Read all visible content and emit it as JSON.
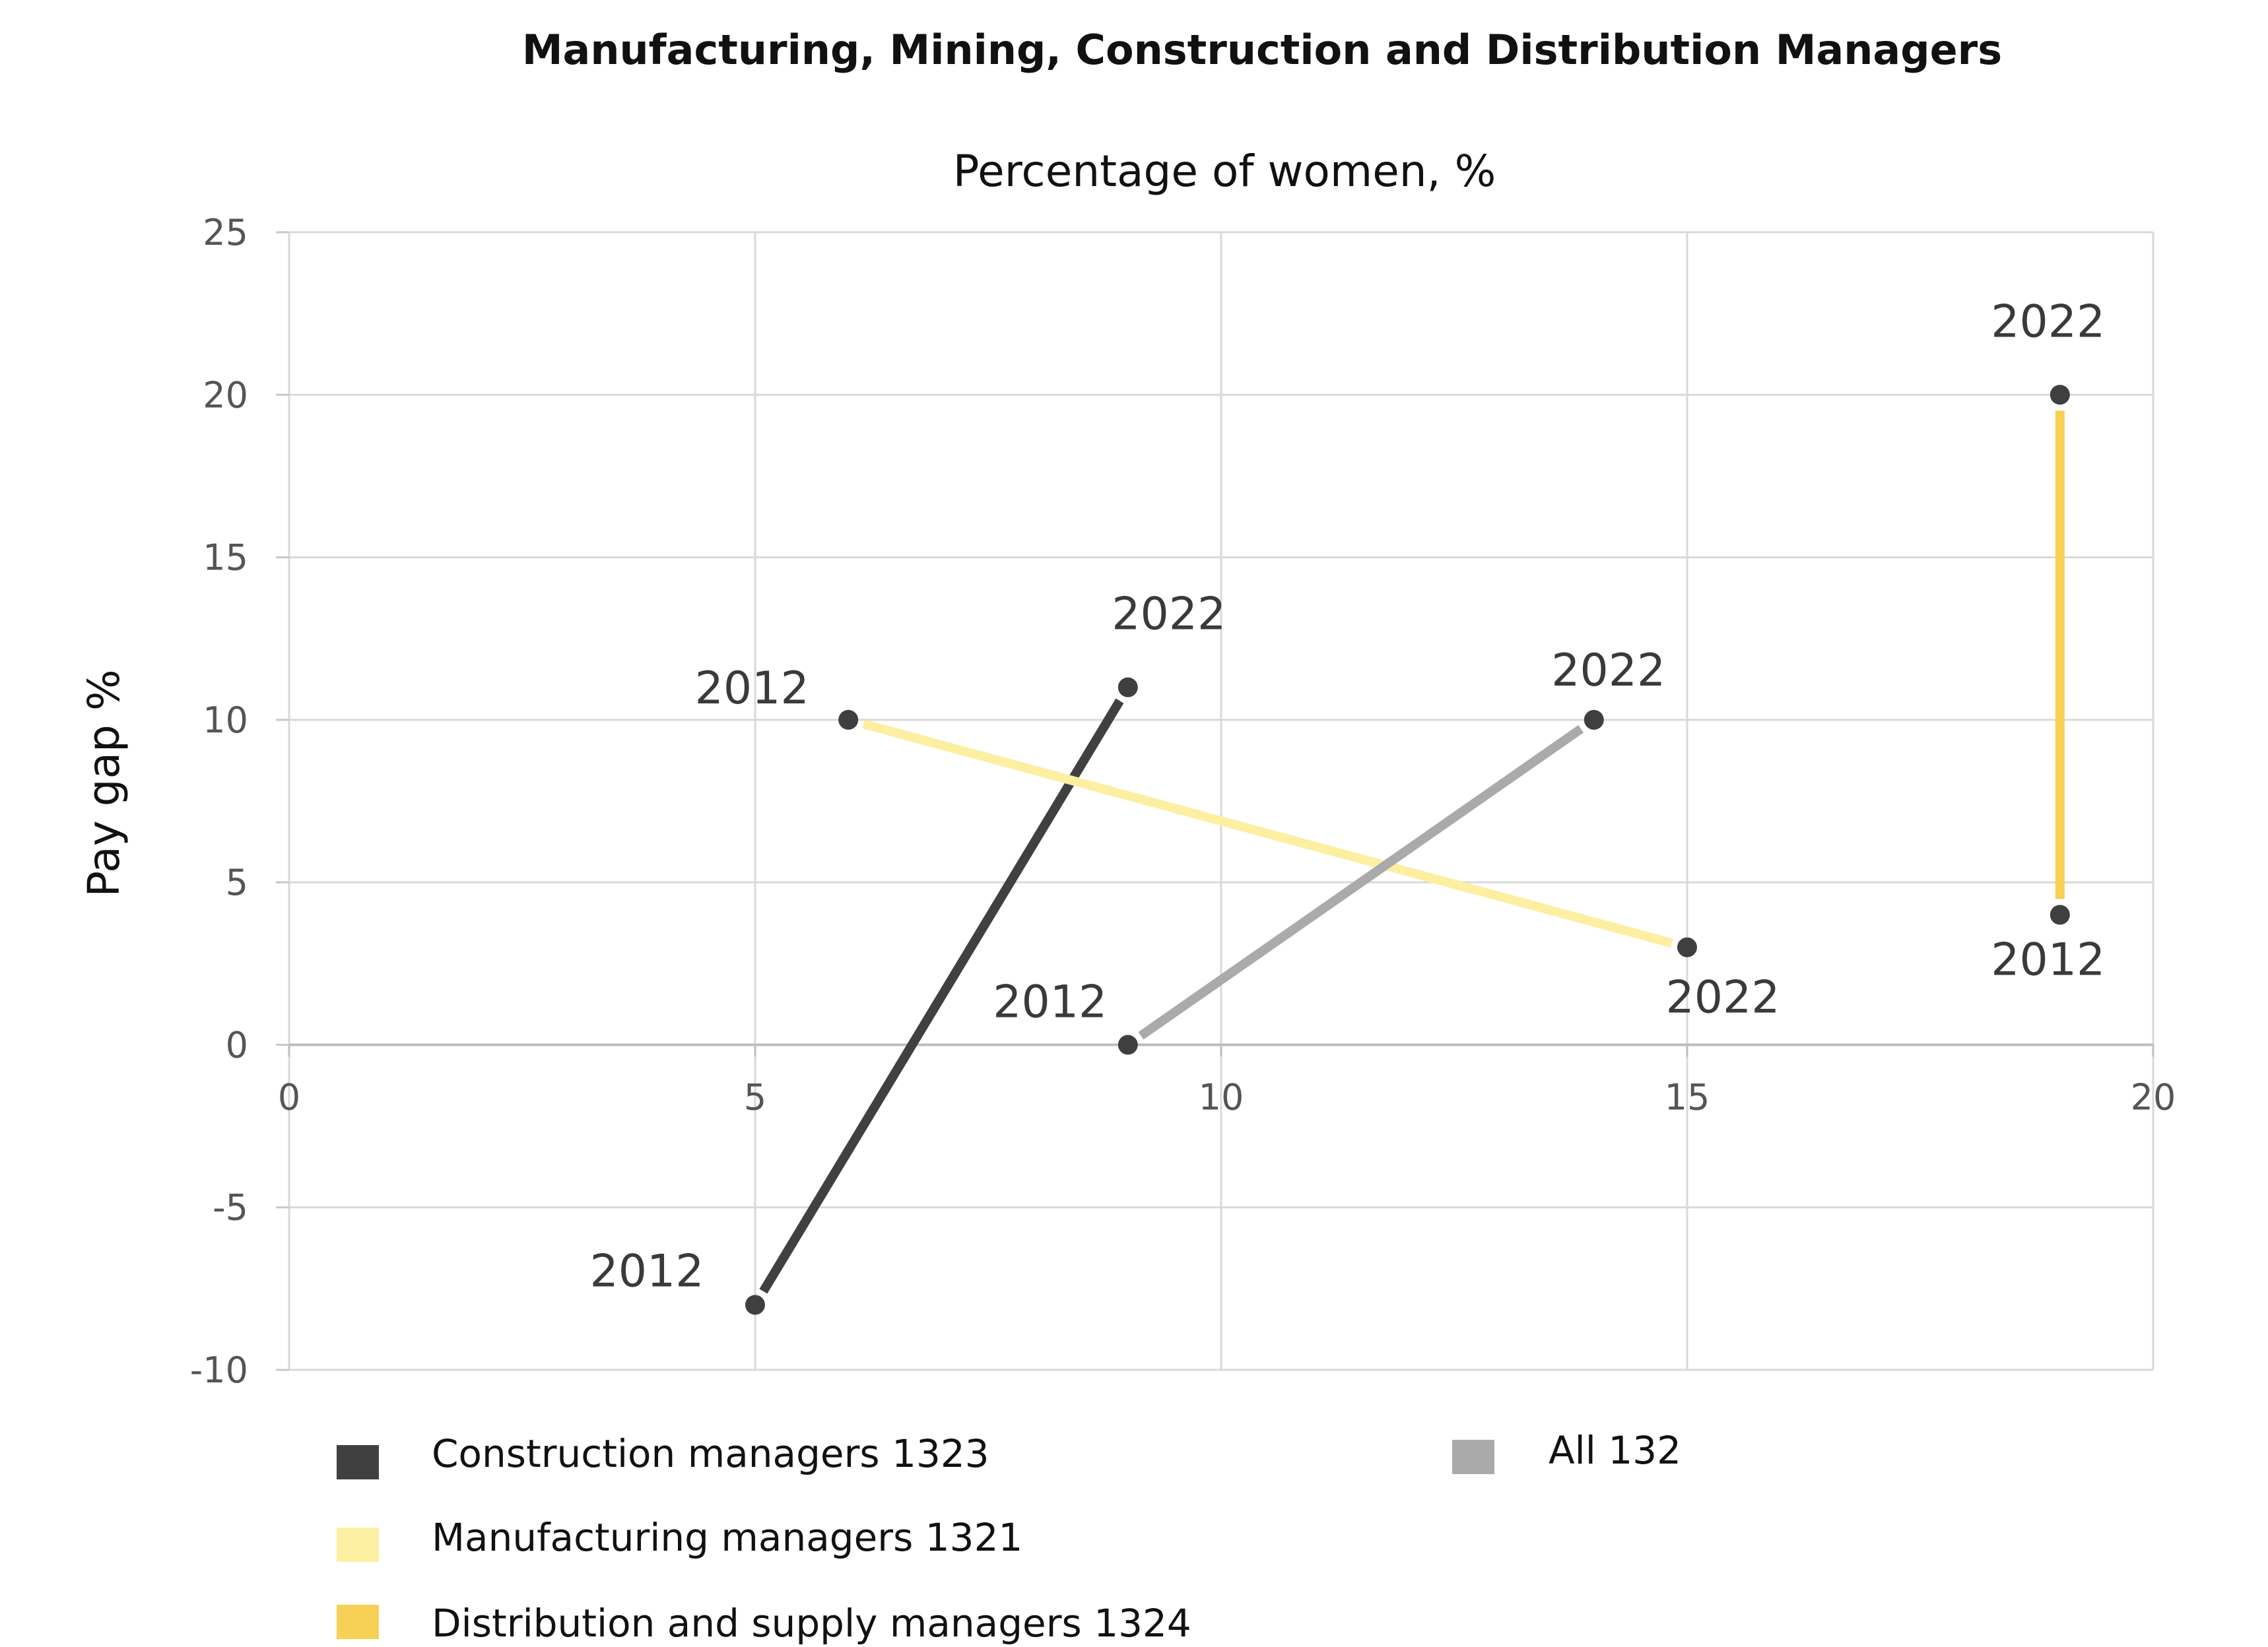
{
  "chart_data": {
    "type": "scatter",
    "title": "Manufacturing, Mining, Construction and Distribution Managers",
    "xlabel": "Percentage of women, %",
    "ylabel": "Pay gap %",
    "xlim": [
      0,
      20
    ],
    "ylim": [
      -10,
      25
    ],
    "xticks": [
      0,
      5,
      10,
      15,
      20
    ],
    "yticks": [
      -10,
      -5,
      0,
      5,
      10,
      15,
      20,
      25
    ],
    "grid": true,
    "legend_position": "bottom",
    "series": [
      {
        "name": "Construction managers 1323",
        "color": "#404040",
        "points": [
          {
            "label": "2012",
            "x": 5,
            "y": -8
          },
          {
            "label": "2022",
            "x": 9,
            "y": 11
          }
        ]
      },
      {
        "name": "Manufacturing managers 1321",
        "color": "#fcefa1",
        "points": [
          {
            "label": "2012",
            "x": 6,
            "y": 10
          },
          {
            "label": "2022",
            "x": 15,
            "y": 3
          }
        ]
      },
      {
        "name": "Distribution and supply  managers 1324",
        "color": "#f7d155",
        "points": [
          {
            "label": "2012",
            "x": 19,
            "y": 4
          },
          {
            "label": "2022",
            "x": 19,
            "y": 20
          }
        ]
      },
      {
        "name": "All 132",
        "color": "#aaaaaa",
        "points": [
          {
            "label": "2012",
            "x": 9,
            "y": 0
          },
          {
            "label": "2022",
            "x": 14,
            "y": 10
          }
        ]
      }
    ]
  }
}
